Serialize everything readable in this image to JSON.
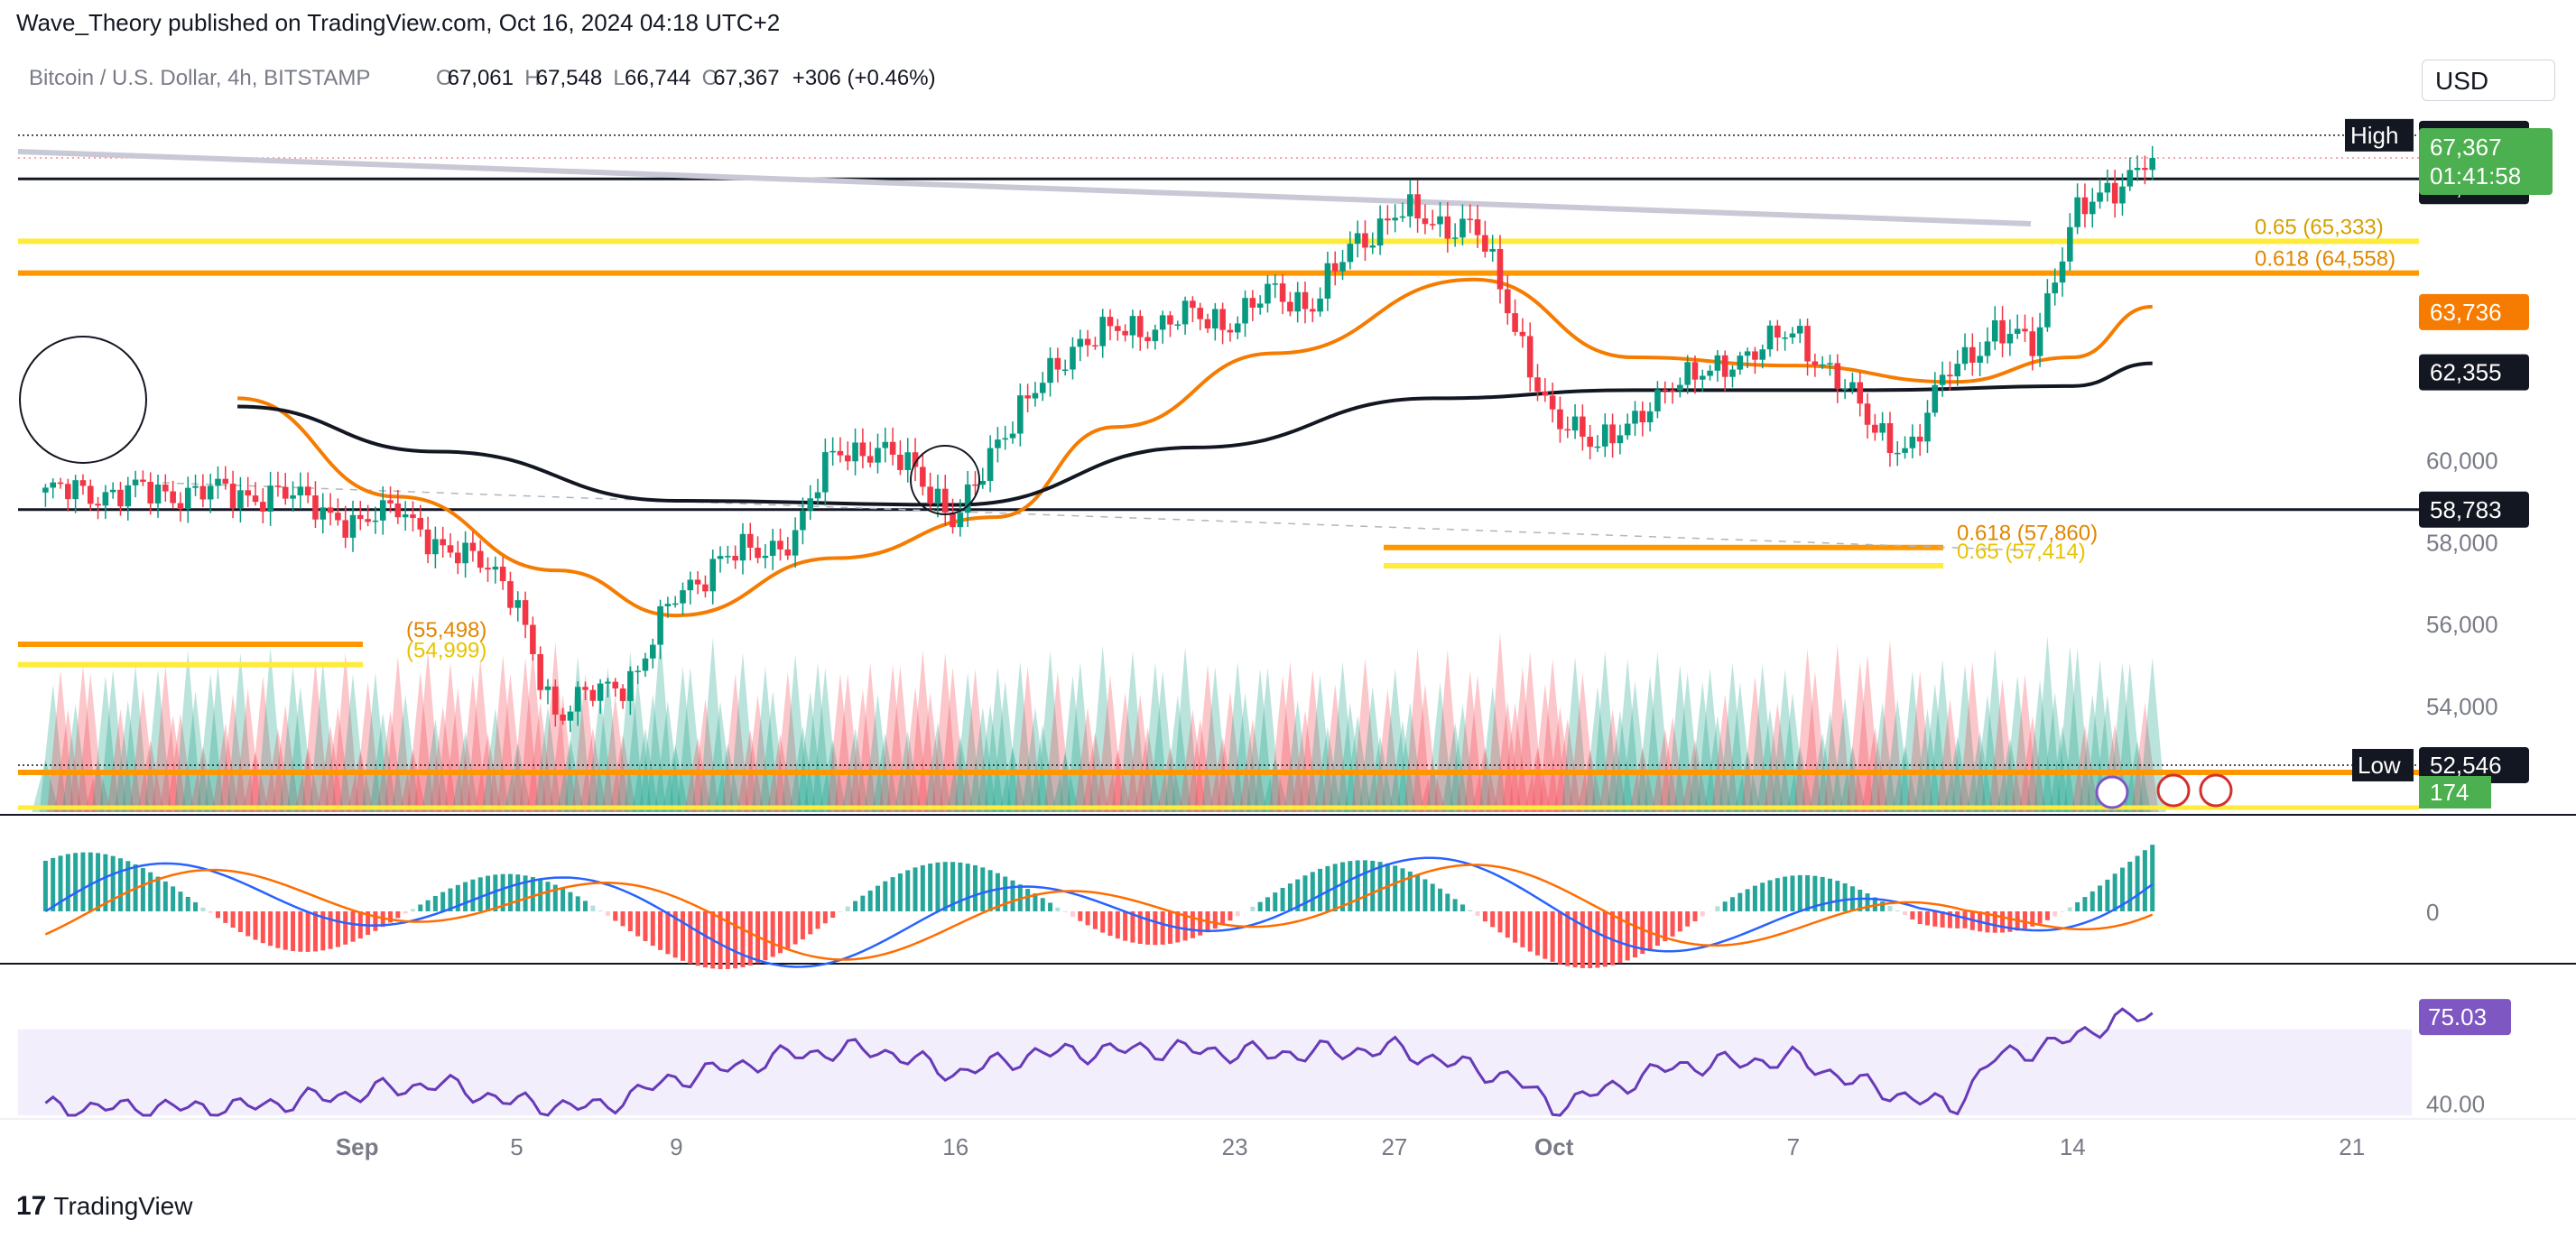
{
  "header": {
    "published": "Wave_Theory published on TradingView.com, Oct 16, 2024 04:18 UTC+2"
  },
  "legend": {
    "symbol": "Bitcoin / U.S. Dollar, 4h, BITSTAMP",
    "open_key": "O",
    "open": "67,061",
    "high_key": "H",
    "high": "67,548",
    "low_key": "L",
    "low": "66,744",
    "close_key": "C",
    "close": "67,367",
    "change": "+306 (+0.46%)"
  },
  "currency_button": "USD",
  "footer": {
    "brand": "TradingView",
    "mark": "17"
  },
  "colors": {
    "up": "#089981",
    "down": "#f23645",
    "ema50": "#f57c00",
    "ema200": "#131722",
    "fib_yellow": "#ffeb3b",
    "fib_orange": "#ff9800",
    "rsi": "#673ab7",
    "macd_line": "#2962ff",
    "signal_line": "#ff6d00",
    "price_tag": "#4caf50",
    "rsi_tag": "#7e57c2"
  },
  "chart_data": [
    {
      "type": "candlestick",
      "title": "Bitcoin / U.S. Dollar, 4h, BITSTAMP",
      "x_ticks": [
        "Sep",
        "5",
        "9",
        "16",
        "23",
        "27",
        "Oct",
        "7",
        "14",
        "21"
      ],
      "y_ticks": [
        "60,000",
        "58,000",
        "56,000",
        "54,000"
      ],
      "ylim": [
        51400,
        68800
      ],
      "close_series": [
        {
          "x": "Aug 29",
          "y": 59200
        },
        {
          "x": "Aug 30",
          "y": 59100
        },
        {
          "x": "Aug 31",
          "y": 59000
        },
        {
          "x": "Sep 1",
          "y": 58200
        },
        {
          "x": "Sep 2",
          "y": 59100
        },
        {
          "x": "Sep 3",
          "y": 57600
        },
        {
          "x": "Sep 4",
          "y": 57900
        },
        {
          "x": "Sep 5",
          "y": 56300
        },
        {
          "x": "Sep 6",
          "y": 53800
        },
        {
          "x": "Sep 7",
          "y": 54300
        },
        {
          "x": "Sep 8",
          "y": 54800
        },
        {
          "x": "Sep 9",
          "y": 56700
        },
        {
          "x": "Sep 10",
          "y": 57500
        },
        {
          "x": "Sep 11",
          "y": 57800
        },
        {
          "x": "Sep 12",
          "y": 58100
        },
        {
          "x": "Sep 13",
          "y": 60400
        },
        {
          "x": "Sep 14",
          "y": 60100
        },
        {
          "x": "Sep 15",
          "y": 59900
        },
        {
          "x": "Sep 16",
          "y": 58300
        },
        {
          "x": "Sep 17",
          "y": 60500
        },
        {
          "x": "Sep 18",
          "y": 61600
        },
        {
          "x": "Sep 19",
          "y": 62900
        },
        {
          "x": "Sep 20",
          "y": 63100
        },
        {
          "x": "Sep 21",
          "y": 63300
        },
        {
          "x": "Sep 22",
          "y": 63500
        },
        {
          "x": "Sep 23",
          "y": 63400
        },
        {
          "x": "Sep 24",
          "y": 64100
        },
        {
          "x": "Sep 25",
          "y": 63800
        },
        {
          "x": "Sep 26",
          "y": 65300
        },
        {
          "x": "Sep 27",
          "y": 66000
        },
        {
          "x": "Sep 28",
          "y": 65800
        },
        {
          "x": "Sep 29",
          "y": 65700
        },
        {
          "x": "Sep 30",
          "y": 63400
        },
        {
          "x": "Oct 1",
          "y": 60800
        },
        {
          "x": "Oct 2",
          "y": 60600
        },
        {
          "x": "Oct 3",
          "y": 60700
        },
        {
          "x": "Oct 4",
          "y": 62100
        },
        {
          "x": "Oct 5",
          "y": 62000
        },
        {
          "x": "Oct 6",
          "y": 62800
        },
        {
          "x": "Oct 7",
          "y": 63000
        },
        {
          "x": "Oct 8",
          "y": 62200
        },
        {
          "x": "Oct 9",
          "y": 60700
        },
        {
          "x": "Oct 10",
          "y": 60300
        },
        {
          "x": "Oct 11",
          "y": 62400
        },
        {
          "x": "Oct 12",
          "y": 63000
        },
        {
          "x": "Oct 13",
          "y": 62900
        },
        {
          "x": "Oct 14",
          "y": 65800
        },
        {
          "x": "Oct 15",
          "y": 66700
        },
        {
          "x": "Oct 16",
          "y": 67367
        }
      ],
      "moving_averages": [
        {
          "color": "#f57c00",
          "values": [
            {
              "x": "Aug 29",
              "y": 61500
            },
            {
              "x": "Sep 2",
              "y": 59100
            },
            {
              "x": "Sep 6",
              "y": 57300
            },
            {
              "x": "Sep 9",
              "y": 56200
            },
            {
              "x": "Sep 13",
              "y": 57600
            },
            {
              "x": "Sep 17",
              "y": 58600
            },
            {
              "x": "Sep 20",
              "y": 60800
            },
            {
              "x": "Sep 24",
              "y": 62600
            },
            {
              "x": "Sep 29",
              "y": 64400
            },
            {
              "x": "Oct 3",
              "y": 62500
            },
            {
              "x": "Oct 7",
              "y": 62300
            },
            {
              "x": "Oct 11",
              "y": 61900
            },
            {
              "x": "Oct 14",
              "y": 62500
            },
            {
              "x": "Oct 16",
              "y": 63736
            }
          ]
        },
        {
          "color": "#131722",
          "values": [
            {
              "x": "Aug 29",
              "y": 61300
            },
            {
              "x": "Sep 3",
              "y": 60200
            },
            {
              "x": "Sep 9",
              "y": 59000
            },
            {
              "x": "Sep 16",
              "y": 58900
            },
            {
              "x": "Sep 22",
              "y": 60300
            },
            {
              "x": "Sep 28",
              "y": 61500
            },
            {
              "x": "Oct 3",
              "y": 61700
            },
            {
              "x": "Oct 9",
              "y": 61700
            },
            {
              "x": "Oct 14",
              "y": 61800
            },
            {
              "x": "Oct 16",
              "y": 62355
            }
          ]
        }
      ],
      "horizontal_levels": [
        {
          "value": 67922,
          "label": "High",
          "price": "67,922"
        },
        {
          "value": 66855,
          "price": "66,855"
        },
        {
          "value": 58783,
          "price": "58,783"
        },
        {
          "value": 52546,
          "label": "Low",
          "price": "52,546"
        }
      ],
      "price_tags": [
        {
          "value": 67367,
          "price": "67,367",
          "countdown": "01:41:58"
        },
        {
          "value": 63736,
          "price": "63,736"
        },
        {
          "value": 62355,
          "price": "62,355"
        }
      ],
      "fib_levels": [
        {
          "label": "0.65 (65,333)",
          "value": 65333
        },
        {
          "label": "0.618 (64,558)",
          "value": 64558
        },
        {
          "label": "0.618 (57,860)",
          "value": 57860
        },
        {
          "label": "0.65 (57,414)",
          "value": 57414
        },
        {
          "label": "(55,498)",
          "value": 55498
        },
        {
          "label": "(54,999)",
          "value": 54999
        }
      ],
      "volume_label": "174"
    },
    {
      "type": "line",
      "title": "MACD",
      "y_ticks": [
        "0"
      ]
    },
    {
      "type": "line",
      "title": "RSI",
      "y_ticks": [
        "40.00"
      ],
      "last_value": "75.03",
      "ylim": [
        35,
        85
      ],
      "values": [
        {
          "x": "Aug 29",
          "y": 38
        },
        {
          "x": "Sep 1",
          "y": 44
        },
        {
          "x": "Sep 3",
          "y": 48
        },
        {
          "x": "Sep 5",
          "y": 40
        },
        {
          "x": "Sep 7",
          "y": 38
        },
        {
          "x": "Sep 9",
          "y": 50
        },
        {
          "x": "Sep 12",
          "y": 60
        },
        {
          "x": "Sep 14",
          "y": 62
        },
        {
          "x": "Sep 16",
          "y": 52
        },
        {
          "x": "Sep 18",
          "y": 60
        },
        {
          "x": "Sep 21",
          "y": 62
        },
        {
          "x": "Sep 24",
          "y": 60
        },
        {
          "x": "Sep 27",
          "y": 62
        },
        {
          "x": "Sep 30",
          "y": 50
        },
        {
          "x": "Oct 1",
          "y": 38
        },
        {
          "x": "Oct 4",
          "y": 55
        },
        {
          "x": "Oct 7",
          "y": 58
        },
        {
          "x": "Oct 9",
          "y": 46
        },
        {
          "x": "Oct 11",
          "y": 38
        },
        {
          "x": "Oct 12",
          "y": 58
        },
        {
          "x": "Oct 14",
          "y": 66
        },
        {
          "x": "Oct 15",
          "y": 74
        },
        {
          "x": "Oct 16",
          "y": 75.03
        }
      ]
    }
  ]
}
